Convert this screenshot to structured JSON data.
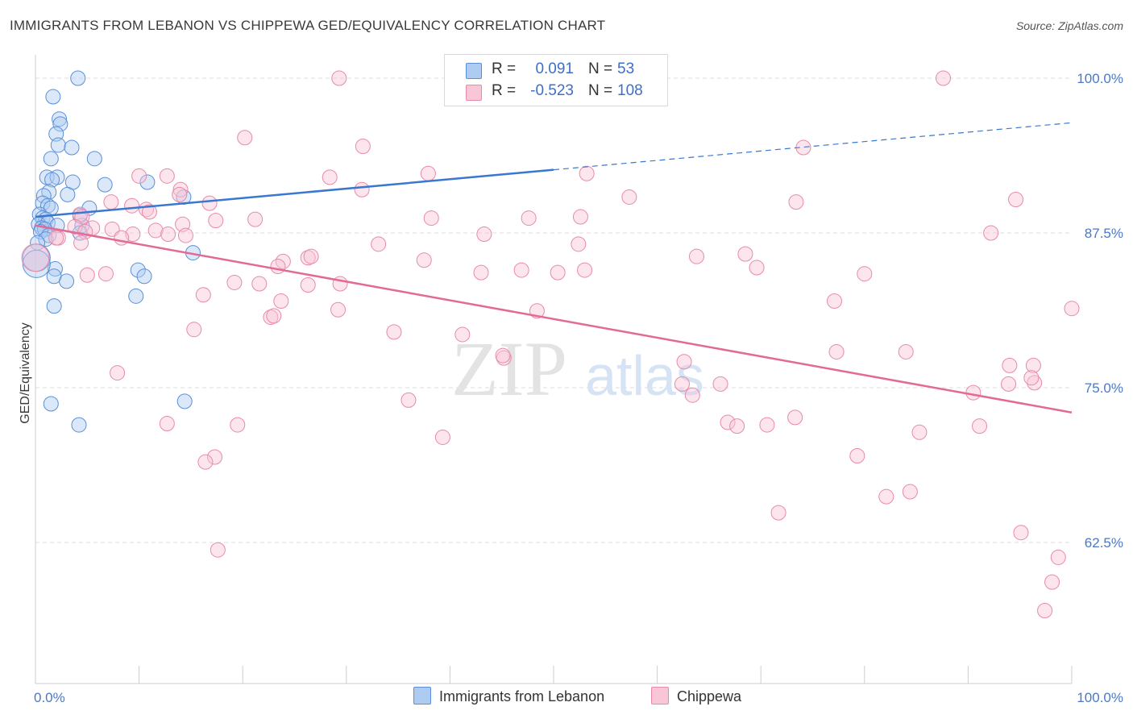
{
  "title": "IMMIGRANTS FROM LEBANON VS CHIPPEWA GED/EQUIVALENCY CORRELATION CHART",
  "source": "Source: ZipAtlas.com",
  "watermark": {
    "zip": "ZIP",
    "atlas": "atlas"
  },
  "legend": {
    "r_label": "R =",
    "n_label": "N =",
    "rows": [
      {
        "r": "0.091",
        "n": "53"
      },
      {
        "r": "-0.523",
        "n": "108"
      }
    ]
  },
  "colors": {
    "blue_fill": "#aecbf2",
    "blue_stroke": "#5a8fd8",
    "blue_line": "#3a78d0",
    "pink_fill": "#f8c6d6",
    "pink_stroke": "#e88aa8",
    "pink_line": "#e26a94",
    "tick": "#4a78c8",
    "grid": "#dddddd"
  },
  "chart_data": {
    "type": "scatter",
    "xlabel": "",
    "ylabel": "GED/Equivalency",
    "xlim": [
      0,
      100
    ],
    "ylim": [
      52.5,
      101.0
    ],
    "x_tick_labels": [
      "0.0%",
      "100.0%"
    ],
    "y_ticks": [
      {
        "value": 100.0,
        "label": "100.0%"
      },
      {
        "value": 87.5,
        "label": "87.5%"
      },
      {
        "value": 75.0,
        "label": "75.0%"
      },
      {
        "value": 62.5,
        "label": "62.5%"
      }
    ],
    "series": [
      {
        "name": "Immigrants from Lebanon",
        "color": "blue",
        "trend": {
          "x0": 0,
          "y0": 88.8,
          "x1": 50,
          "y1": 92.6,
          "dash_to_x": 100,
          "dash_to_y": 96.4
        },
        "points": [
          [
            4.1,
            100.0
          ],
          [
            1.7,
            98.5
          ],
          [
            2.3,
            96.7
          ],
          [
            2.4,
            96.3
          ],
          [
            2.0,
            95.5
          ],
          [
            2.2,
            94.6
          ],
          [
            3.5,
            94.4
          ],
          [
            1.5,
            93.5
          ],
          [
            5.7,
            93.5
          ],
          [
            1.1,
            92.0
          ],
          [
            2.1,
            92.0
          ],
          [
            1.6,
            91.8
          ],
          [
            3.6,
            91.6
          ],
          [
            6.7,
            91.4
          ],
          [
            10.8,
            91.6
          ],
          [
            1.3,
            90.8
          ],
          [
            0.8,
            90.5
          ],
          [
            3.1,
            90.6
          ],
          [
            14.3,
            90.4
          ],
          [
            0.7,
            89.9
          ],
          [
            1.2,
            89.7
          ],
          [
            1.5,
            89.5
          ],
          [
            5.2,
            89.5
          ],
          [
            0.4,
            89.0
          ],
          [
            0.7,
            88.7
          ],
          [
            4.3,
            88.9
          ],
          [
            1.0,
            88.6
          ],
          [
            0.3,
            88.2
          ],
          [
            1.2,
            88.3
          ],
          [
            2.1,
            88.1
          ],
          [
            0.6,
            87.9
          ],
          [
            0.9,
            87.8
          ],
          [
            4.5,
            88.1
          ],
          [
            0.5,
            87.6
          ],
          [
            1.3,
            87.3
          ],
          [
            1.0,
            87.0
          ],
          [
            4.3,
            87.5
          ],
          [
            0.2,
            86.7
          ],
          [
            0.1,
            85.5
          ],
          [
            15.2,
            85.9
          ],
          [
            1.9,
            84.6
          ],
          [
            9.9,
            84.5
          ],
          [
            1.8,
            84.0
          ],
          [
            10.5,
            84.0
          ],
          [
            3.0,
            83.6
          ],
          [
            9.7,
            82.4
          ],
          [
            1.8,
            81.6
          ],
          [
            1.5,
            73.7
          ],
          [
            14.4,
            73.9
          ],
          [
            4.2,
            72.0
          ],
          [
            0.1,
            85.0
          ]
        ]
      },
      {
        "name": "Chippewa",
        "color": "pink",
        "trend": {
          "x0": 0,
          "y0": 88.1,
          "x1": 100,
          "y1": 73.0
        },
        "points": [
          [
            29.3,
            100.0
          ],
          [
            87.6,
            100.0
          ],
          [
            20.2,
            95.2
          ],
          [
            31.6,
            94.5
          ],
          [
            74.1,
            94.4
          ],
          [
            10.0,
            92.1
          ],
          [
            12.7,
            92.1
          ],
          [
            37.9,
            92.3
          ],
          [
            53.2,
            92.3
          ],
          [
            28.4,
            92.0
          ],
          [
            14.0,
            91.0
          ],
          [
            31.5,
            91.0
          ],
          [
            13.9,
            90.6
          ],
          [
            57.3,
            90.4
          ],
          [
            94.6,
            90.2
          ],
          [
            7.3,
            90.0
          ],
          [
            16.8,
            89.9
          ],
          [
            73.4,
            90.0
          ],
          [
            9.3,
            89.7
          ],
          [
            10.7,
            89.4
          ],
          [
            11.0,
            89.2
          ],
          [
            4.3,
            89.0
          ],
          [
            4.5,
            88.8
          ],
          [
            17.4,
            88.5
          ],
          [
            21.2,
            88.6
          ],
          [
            38.2,
            88.7
          ],
          [
            47.6,
            88.7
          ],
          [
            52.6,
            88.8
          ],
          [
            3.8,
            88.0
          ],
          [
            5.5,
            87.9
          ],
          [
            7.4,
            87.8
          ],
          [
            11.6,
            87.7
          ],
          [
            14.2,
            88.2
          ],
          [
            4.8,
            87.6
          ],
          [
            9.4,
            87.4
          ],
          [
            12.8,
            87.4
          ],
          [
            14.5,
            87.3
          ],
          [
            2.2,
            87.1
          ],
          [
            4.4,
            86.7
          ],
          [
            8.3,
            87.1
          ],
          [
            43.3,
            87.4
          ],
          [
            92.2,
            87.5
          ],
          [
            33.1,
            86.6
          ],
          [
            52.4,
            86.6
          ],
          [
            2.0,
            87.1
          ],
          [
            26.3,
            85.5
          ],
          [
            37.5,
            85.3
          ],
          [
            46.9,
            84.5
          ],
          [
            23.9,
            85.2
          ],
          [
            43.0,
            84.3
          ],
          [
            50.4,
            84.3
          ],
          [
            5.0,
            84.1
          ],
          [
            6.8,
            84.2
          ],
          [
            23.4,
            84.8
          ],
          [
            53.0,
            84.5
          ],
          [
            26.6,
            85.6
          ],
          [
            63.8,
            85.6
          ],
          [
            68.5,
            85.8
          ],
          [
            69.6,
            84.7
          ],
          [
            80.0,
            84.2
          ],
          [
            19.2,
            83.5
          ],
          [
            21.6,
            83.4
          ],
          [
            29.4,
            83.4
          ],
          [
            26.3,
            83.3
          ],
          [
            16.2,
            82.5
          ],
          [
            23.7,
            82.0
          ],
          [
            77.1,
            82.0
          ],
          [
            29.2,
            81.3
          ],
          [
            22.7,
            80.7
          ],
          [
            23.0,
            80.8
          ],
          [
            48.4,
            81.2
          ],
          [
            100.0,
            81.4
          ],
          [
            15.3,
            79.7
          ],
          [
            34.6,
            79.5
          ],
          [
            41.2,
            79.3
          ],
          [
            7.9,
            76.2
          ],
          [
            45.2,
            77.4
          ],
          [
            45.1,
            77.6
          ],
          [
            77.3,
            77.9
          ],
          [
            84.0,
            77.9
          ],
          [
            63.4,
            74.4
          ],
          [
            62.6,
            77.1
          ],
          [
            94.0,
            76.8
          ],
          [
            96.3,
            76.8
          ],
          [
            93.9,
            75.3
          ],
          [
            96.4,
            75.4
          ],
          [
            96.1,
            75.8
          ],
          [
            90.5,
            74.6
          ],
          [
            62.4,
            75.3
          ],
          [
            66.1,
            75.3
          ],
          [
            36.0,
            74.0
          ],
          [
            73.3,
            72.6
          ],
          [
            66.8,
            72.2
          ],
          [
            67.7,
            71.9
          ],
          [
            70.6,
            72.0
          ],
          [
            91.1,
            71.9
          ],
          [
            12.7,
            72.1
          ],
          [
            19.5,
            72.0
          ],
          [
            39.3,
            71.0
          ],
          [
            17.3,
            69.4
          ],
          [
            16.4,
            69.0
          ],
          [
            85.3,
            71.4
          ],
          [
            79.3,
            69.5
          ],
          [
            84.4,
            66.6
          ],
          [
            82.1,
            66.2
          ],
          [
            71.7,
            64.9
          ],
          [
            95.1,
            63.3
          ],
          [
            17.6,
            61.9
          ],
          [
            98.7,
            61.3
          ],
          [
            98.1,
            59.3
          ],
          [
            97.4,
            57.0
          ],
          [
            0.0,
            85.5
          ]
        ]
      }
    ]
  },
  "bottom_legend": [
    {
      "label": "Immigrants from Lebanon"
    },
    {
      "label": "Chippewa"
    }
  ]
}
